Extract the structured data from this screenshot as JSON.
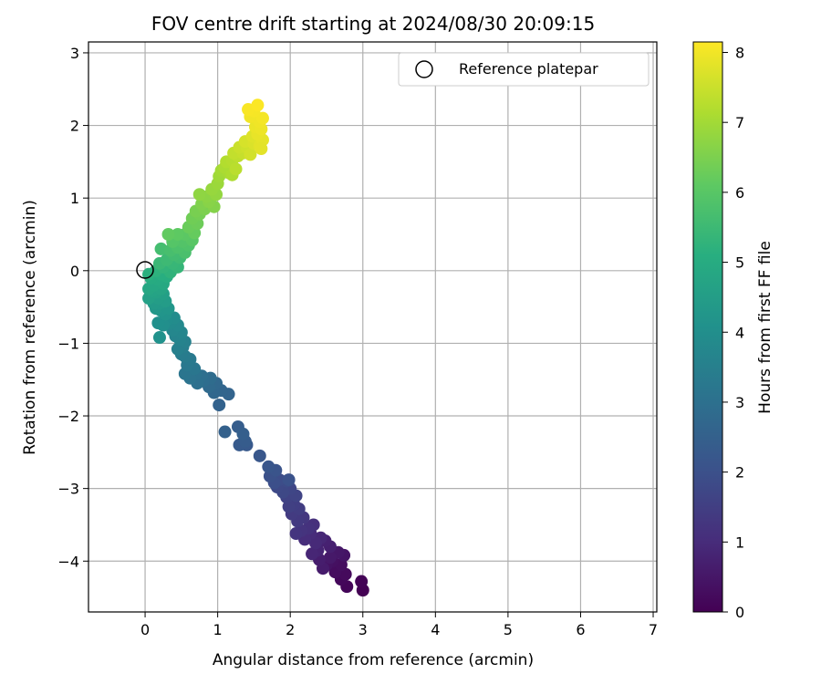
{
  "chart_data": {
    "type": "scatter",
    "title": "FOV centre drift starting at 2024/08/30 20:09:15",
    "xlabel": "Angular distance from reference (arcmin)",
    "ylabel": "Rotation from reference (arcmin)",
    "xlim": [
      -0.78,
      7.05
    ],
    "ylim": [
      -4.7,
      3.15
    ],
    "xticks": [
      "0",
      "1",
      "2",
      "3",
      "4",
      "5",
      "6",
      "7"
    ],
    "yticks": [
      "−4",
      "−3",
      "−2",
      "−1",
      "0",
      "1",
      "2",
      "3"
    ],
    "grid": true,
    "colormap": "viridis",
    "colorbar": {
      "label": "Hours from first FF file",
      "range": [
        0,
        8.15
      ],
      "ticks": [
        "0",
        "1",
        "2",
        "3",
        "4",
        "5",
        "6",
        "7",
        "8"
      ]
    },
    "legend": {
      "placement": "top-right",
      "entries": [
        {
          "label": "Reference platepar",
          "marker": "open-circle"
        }
      ]
    },
    "reference_point": {
      "x": 0,
      "y": 0
    },
    "points": [
      {
        "x": 3.0,
        "y": -4.4,
        "h": 0.0
      },
      {
        "x": 2.98,
        "y": -4.28,
        "h": 0.05
      },
      {
        "x": 2.78,
        "y": -4.35,
        "h": 0.1
      },
      {
        "x": 2.7,
        "y": -4.25,
        "h": 0.15
      },
      {
        "x": 2.76,
        "y": -4.18,
        "h": 0.2
      },
      {
        "x": 2.62,
        "y": -4.15,
        "h": 0.25
      },
      {
        "x": 2.7,
        "y": -4.05,
        "h": 0.3
      },
      {
        "x": 2.58,
        "y": -4.0,
        "h": 0.35
      },
      {
        "x": 2.5,
        "y": -4.05,
        "h": 0.4
      },
      {
        "x": 2.74,
        "y": -3.92,
        "h": 0.45
      },
      {
        "x": 2.66,
        "y": -3.88,
        "h": 0.5
      },
      {
        "x": 2.55,
        "y": -3.95,
        "h": 0.55
      },
      {
        "x": 2.45,
        "y": -4.1,
        "h": 0.6
      },
      {
        "x": 2.4,
        "y": -3.98,
        "h": 0.65
      },
      {
        "x": 2.55,
        "y": -3.8,
        "h": 0.7
      },
      {
        "x": 2.48,
        "y": -3.72,
        "h": 0.75
      },
      {
        "x": 2.38,
        "y": -3.85,
        "h": 0.8
      },
      {
        "x": 2.3,
        "y": -3.9,
        "h": 0.85
      },
      {
        "x": 2.42,
        "y": -3.68,
        "h": 0.9
      },
      {
        "x": 2.35,
        "y": -3.75,
        "h": 0.95
      },
      {
        "x": 2.28,
        "y": -3.62,
        "h": 1.0
      },
      {
        "x": 2.2,
        "y": -3.7,
        "h": 1.05
      },
      {
        "x": 2.32,
        "y": -3.5,
        "h": 1.1
      },
      {
        "x": 2.25,
        "y": -3.55,
        "h": 1.15
      },
      {
        "x": 2.15,
        "y": -3.58,
        "h": 1.2
      },
      {
        "x": 2.08,
        "y": -3.62,
        "h": 1.25
      },
      {
        "x": 2.18,
        "y": -3.4,
        "h": 1.3
      },
      {
        "x": 2.1,
        "y": -3.45,
        "h": 1.35
      },
      {
        "x": 2.02,
        "y": -3.35,
        "h": 1.4
      },
      {
        "x": 2.12,
        "y": -3.28,
        "h": 1.45
      },
      {
        "x": 2.05,
        "y": -3.22,
        "h": 1.5
      },
      {
        "x": 1.98,
        "y": -3.25,
        "h": 1.55
      },
      {
        "x": 1.95,
        "y": -3.12,
        "h": 1.6
      },
      {
        "x": 2.08,
        "y": -3.1,
        "h": 1.65
      },
      {
        "x": 2.0,
        "y": -3.0,
        "h": 1.7
      },
      {
        "x": 1.9,
        "y": -3.05,
        "h": 1.75
      },
      {
        "x": 1.82,
        "y": -2.98,
        "h": 1.8
      },
      {
        "x": 1.95,
        "y": -2.9,
        "h": 1.85
      },
      {
        "x": 1.85,
        "y": -2.88,
        "h": 1.9
      },
      {
        "x": 1.78,
        "y": -2.92,
        "h": 1.95
      },
      {
        "x": 1.72,
        "y": -2.83,
        "h": 2.0
      },
      {
        "x": 1.98,
        "y": -2.88,
        "h": 2.05
      },
      {
        "x": 1.8,
        "y": -2.75,
        "h": 2.1
      },
      {
        "x": 1.7,
        "y": -2.7,
        "h": 2.15
      },
      {
        "x": 1.58,
        "y": -2.55,
        "h": 2.2
      },
      {
        "x": 1.4,
        "y": -2.4,
        "h": 2.25
      },
      {
        "x": 1.3,
        "y": -2.4,
        "h": 2.3
      },
      {
        "x": 1.38,
        "y": -2.35,
        "h": 2.35
      },
      {
        "x": 1.28,
        "y": -2.15,
        "h": 2.4
      },
      {
        "x": 1.35,
        "y": -2.25,
        "h": 2.45
      },
      {
        "x": 1.1,
        "y": -2.22,
        "h": 2.5
      },
      {
        "x": 1.02,
        "y": -1.85,
        "h": 2.55
      },
      {
        "x": 1.15,
        "y": -1.7,
        "h": 2.6
      },
      {
        "x": 1.05,
        "y": -1.65,
        "h": 2.65
      },
      {
        "x": 0.95,
        "y": -1.68,
        "h": 2.7
      },
      {
        "x": 0.98,
        "y": -1.55,
        "h": 2.75
      },
      {
        "x": 0.88,
        "y": -1.6,
        "h": 2.8
      },
      {
        "x": 0.9,
        "y": -1.48,
        "h": 2.85
      },
      {
        "x": 0.8,
        "y": -1.52,
        "h": 2.9
      },
      {
        "x": 0.78,
        "y": -1.45,
        "h": 2.95
      },
      {
        "x": 0.72,
        "y": -1.55,
        "h": 3.0
      },
      {
        "x": 0.7,
        "y": -1.42,
        "h": 3.05
      },
      {
        "x": 0.62,
        "y": -1.48,
        "h": 3.1
      },
      {
        "x": 0.55,
        "y": -1.42,
        "h": 3.15
      },
      {
        "x": 0.68,
        "y": -1.35,
        "h": 3.2
      },
      {
        "x": 0.58,
        "y": -1.3,
        "h": 3.25
      },
      {
        "x": 0.62,
        "y": -1.22,
        "h": 3.3
      },
      {
        "x": 0.55,
        "y": -1.18,
        "h": 3.35
      },
      {
        "x": 0.5,
        "y": -1.15,
        "h": 3.4
      },
      {
        "x": 0.52,
        "y": -1.05,
        "h": 3.45
      },
      {
        "x": 0.45,
        "y": -1.08,
        "h": 3.5
      },
      {
        "x": 0.55,
        "y": -0.98,
        "h": 3.55
      },
      {
        "x": 0.48,
        "y": -0.95,
        "h": 3.6
      },
      {
        "x": 0.42,
        "y": -0.9,
        "h": 3.65
      },
      {
        "x": 0.5,
        "y": -0.85,
        "h": 3.7
      },
      {
        "x": 0.38,
        "y": -0.82,
        "h": 3.75
      },
      {
        "x": 0.45,
        "y": -0.75,
        "h": 3.8
      },
      {
        "x": 0.35,
        "y": -0.72,
        "h": 3.85
      },
      {
        "x": 0.4,
        "y": -0.65,
        "h": 3.9
      },
      {
        "x": 0.3,
        "y": -0.68,
        "h": 3.95
      },
      {
        "x": 0.25,
        "y": -0.75,
        "h": 4.0
      },
      {
        "x": 0.18,
        "y": -0.72,
        "h": 4.05
      },
      {
        "x": 0.2,
        "y": -0.92,
        "h": 4.1
      },
      {
        "x": 0.28,
        "y": -0.6,
        "h": 4.15
      },
      {
        "x": 0.22,
        "y": -0.55,
        "h": 4.2
      },
      {
        "x": 0.32,
        "y": -0.52,
        "h": 4.25
      },
      {
        "x": 0.15,
        "y": -0.52,
        "h": 4.3
      },
      {
        "x": 0.2,
        "y": -0.45,
        "h": 4.35
      },
      {
        "x": 0.12,
        "y": -0.45,
        "h": 4.4
      },
      {
        "x": 0.28,
        "y": -0.42,
        "h": 4.45
      },
      {
        "x": 0.18,
        "y": -0.38,
        "h": 4.5
      },
      {
        "x": 0.25,
        "y": -0.32,
        "h": 4.55
      },
      {
        "x": 0.05,
        "y": -0.38,
        "h": 4.6
      },
      {
        "x": 0.15,
        "y": -0.3,
        "h": 4.65
      },
      {
        "x": 0.1,
        "y": -0.28,
        "h": 4.7
      },
      {
        "x": 0.22,
        "y": -0.25,
        "h": 4.75
      },
      {
        "x": 0.05,
        "y": -0.25,
        "h": 4.8
      },
      {
        "x": 0.12,
        "y": -0.2,
        "h": 4.85
      },
      {
        "x": 0.25,
        "y": -0.18,
        "h": 4.9
      },
      {
        "x": 0.18,
        "y": -0.12,
        "h": 4.95
      },
      {
        "x": 0.08,
        "y": -0.1,
        "h": 5.0
      },
      {
        "x": 0.3,
        "y": -0.08,
        "h": 5.05
      },
      {
        "x": 0.22,
        "y": -0.05,
        "h": 5.1
      },
      {
        "x": 0.05,
        "y": -0.05,
        "h": 5.15
      },
      {
        "x": 0.15,
        "y": 0.0,
        "h": 5.2
      },
      {
        "x": 0.35,
        "y": -0.02,
        "h": 5.25
      },
      {
        "x": 0.25,
        "y": 0.05,
        "h": 5.3
      },
      {
        "x": 0.45,
        "y": 0.05,
        "h": 5.35
      },
      {
        "x": 0.38,
        "y": 0.1,
        "h": 5.4
      },
      {
        "x": 0.2,
        "y": 0.1,
        "h": 5.45
      },
      {
        "x": 0.3,
        "y": 0.15,
        "h": 5.5
      },
      {
        "x": 0.48,
        "y": 0.18,
        "h": 5.55
      },
      {
        "x": 0.4,
        "y": 0.22,
        "h": 5.6
      },
      {
        "x": 0.22,
        "y": 0.3,
        "h": 5.65
      },
      {
        "x": 0.35,
        "y": 0.28,
        "h": 5.7
      },
      {
        "x": 0.55,
        "y": 0.25,
        "h": 5.75
      },
      {
        "x": 0.45,
        "y": 0.32,
        "h": 5.8
      },
      {
        "x": 0.6,
        "y": 0.35,
        "h": 5.85
      },
      {
        "x": 0.52,
        "y": 0.4,
        "h": 5.9
      },
      {
        "x": 0.38,
        "y": 0.4,
        "h": 5.95
      },
      {
        "x": 0.65,
        "y": 0.42,
        "h": 6.0
      },
      {
        "x": 0.55,
        "y": 0.5,
        "h": 6.05
      },
      {
        "x": 0.45,
        "y": 0.5,
        "h": 6.1
      },
      {
        "x": 0.32,
        "y": 0.5,
        "h": 6.15
      },
      {
        "x": 0.68,
        "y": 0.52,
        "h": 6.2
      },
      {
        "x": 0.6,
        "y": 0.6,
        "h": 6.25
      },
      {
        "x": 0.72,
        "y": 0.65,
        "h": 6.3
      },
      {
        "x": 0.65,
        "y": 0.72,
        "h": 6.35
      },
      {
        "x": 0.75,
        "y": 0.78,
        "h": 6.4
      },
      {
        "x": 0.7,
        "y": 0.82,
        "h": 6.45
      },
      {
        "x": 0.82,
        "y": 0.85,
        "h": 6.5
      },
      {
        "x": 0.78,
        "y": 0.92,
        "h": 6.55
      },
      {
        "x": 0.95,
        "y": 0.88,
        "h": 6.6
      },
      {
        "x": 0.88,
        "y": 0.95,
        "h": 6.65
      },
      {
        "x": 0.85,
        "y": 1.02,
        "h": 6.7
      },
      {
        "x": 0.75,
        "y": 1.05,
        "h": 6.75
      },
      {
        "x": 0.98,
        "y": 1.05,
        "h": 6.8
      },
      {
        "x": 0.92,
        "y": 1.12,
        "h": 6.85
      },
      {
        "x": 1.0,
        "y": 1.2,
        "h": 6.9
      },
      {
        "x": 1.02,
        "y": 1.3,
        "h": 6.95
      },
      {
        "x": 1.05,
        "y": 1.38,
        "h": 7.0
      },
      {
        "x": 1.15,
        "y": 1.35,
        "h": 7.05
      },
      {
        "x": 1.1,
        "y": 1.42,
        "h": 7.1
      },
      {
        "x": 1.2,
        "y": 1.32,
        "h": 7.15
      },
      {
        "x": 1.12,
        "y": 1.5,
        "h": 7.2
      },
      {
        "x": 1.2,
        "y": 1.52,
        "h": 7.25
      },
      {
        "x": 1.25,
        "y": 1.4,
        "h": 7.3
      },
      {
        "x": 1.28,
        "y": 1.58,
        "h": 7.35
      },
      {
        "x": 1.22,
        "y": 1.62,
        "h": 7.4
      },
      {
        "x": 1.35,
        "y": 1.62,
        "h": 7.45
      },
      {
        "x": 1.3,
        "y": 1.7,
        "h": 7.5
      },
      {
        "x": 1.4,
        "y": 1.7,
        "h": 7.55
      },
      {
        "x": 1.45,
        "y": 1.6,
        "h": 7.6
      },
      {
        "x": 1.38,
        "y": 1.78,
        "h": 7.65
      },
      {
        "x": 1.5,
        "y": 1.75,
        "h": 7.7
      },
      {
        "x": 1.48,
        "y": 1.85,
        "h": 7.75
      },
      {
        "x": 1.58,
        "y": 1.72,
        "h": 7.8
      },
      {
        "x": 1.62,
        "y": 1.8,
        "h": 7.85
      },
      {
        "x": 1.55,
        "y": 1.88,
        "h": 7.88
      },
      {
        "x": 1.52,
        "y": 1.98,
        "h": 7.92
      },
      {
        "x": 1.6,
        "y": 1.95,
        "h": 7.95
      },
      {
        "x": 1.58,
        "y": 2.05,
        "h": 7.98
      },
      {
        "x": 1.45,
        "y": 2.12,
        "h": 8.0
      },
      {
        "x": 1.62,
        "y": 2.1,
        "h": 8.03
      },
      {
        "x": 1.5,
        "y": 2.2,
        "h": 8.06
      },
      {
        "x": 1.42,
        "y": 2.22,
        "h": 8.09
      },
      {
        "x": 1.55,
        "y": 2.28,
        "h": 8.12
      },
      {
        "x": 1.6,
        "y": 1.68,
        "h": 7.82
      }
    ]
  }
}
